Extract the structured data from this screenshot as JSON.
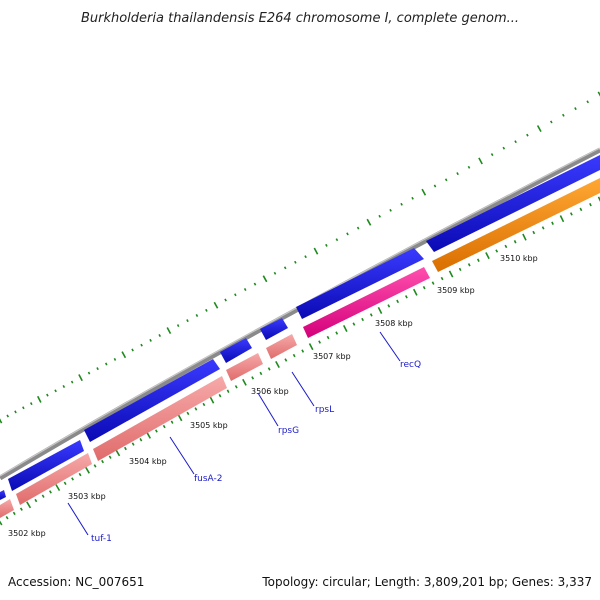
{
  "title": "Burkholderia thailandensis E264 chromosome I, complete genom...",
  "footer": {
    "accession": "Accession: NC_007651",
    "topology": "Topology: circular; Length: 3,809,201 bp; Genes: 3,337"
  },
  "colors": {
    "backbone": "#8a8a8a",
    "forward_gene": "#1414e6",
    "reverse_gene": "#f08a8a",
    "recq_gene": "#ff1493",
    "top_gene": "#ff8c00",
    "ticks": "#1e8a1e",
    "gene_label": "#1a1acc"
  },
  "scale_labels": [
    "3502 kbp",
    "3503 kbp",
    "3504 kbp",
    "3505 kbp",
    "3506 kbp",
    "3507 kbp",
    "3508 kbp",
    "3509 kbp",
    "3510 kbp"
  ],
  "gene_labels": [
    "tuf-1",
    "fusA-2",
    "rpsG",
    "rpsL",
    "recQ"
  ]
}
